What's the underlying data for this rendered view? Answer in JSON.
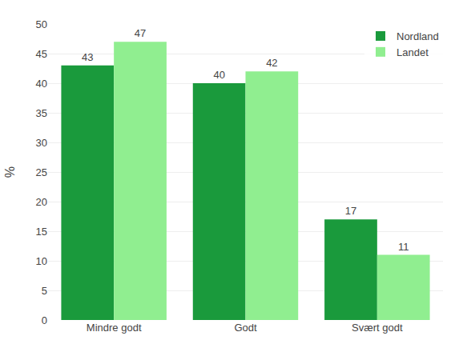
{
  "chart_data": {
    "type": "bar",
    "categories": [
      "Mindre godt",
      "Godt",
      "Svært godt"
    ],
    "series": [
      {
        "name": "Nordland",
        "color": "#1a9a3c",
        "values": [
          43,
          40,
          17
        ]
      },
      {
        "name": "Landet",
        "color": "#90ee90",
        "values": [
          47,
          42,
          11
        ]
      }
    ],
    "ylabel": "%",
    "ylim": [
      0,
      50
    ],
    "yticks": [
      0,
      5,
      10,
      15,
      20,
      25,
      30,
      35,
      40,
      45,
      50
    ],
    "grid": true,
    "legend": "upper right",
    "data_labels": true
  }
}
